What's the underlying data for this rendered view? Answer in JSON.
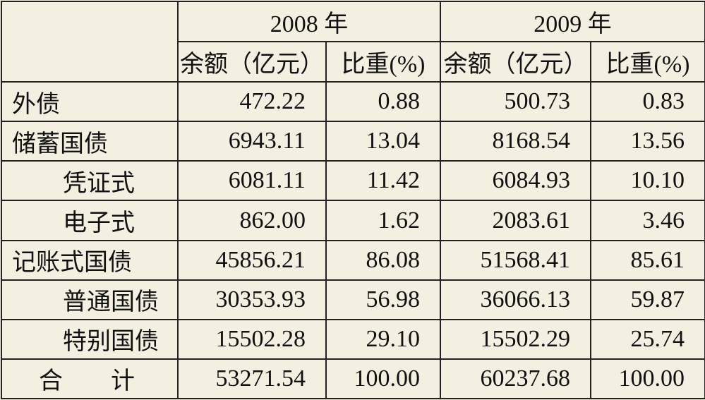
{
  "table": {
    "years": [
      "2008 年",
      "2009 年"
    ],
    "columns": [
      "余额（亿元）",
      "比重(%)",
      "余额（亿元）",
      "比重(%)"
    ],
    "rows": [
      {
        "label": "外债",
        "values": [
          "472.22",
          "0.88",
          "500.73",
          "0.83"
        ],
        "items": []
      },
      {
        "label": "储蓄国债",
        "values": [
          "6943.11",
          "13.04",
          "8168.54",
          "13.56"
        ],
        "items": [
          {
            "label": "凭证式",
            "values": [
              "6081.11",
              "11.42",
              "6084.93",
              "10.10"
            ]
          },
          {
            "label": "电子式",
            "values": [
              "862.00",
              "1.62",
              "2083.61",
              "3.46"
            ]
          }
        ]
      },
      {
        "label": "记账式国债",
        "values": [
          "45856.21",
          "86.08",
          "51568.41",
          "85.61"
        ],
        "items": [
          {
            "label": "普通国债",
            "values": [
              "30353.93",
              "56.98",
              "36066.13",
              "59.87"
            ]
          },
          {
            "label": "特别国债",
            "values": [
              "15502.28",
              "29.10",
              "15502.29",
              "25.74"
            ]
          }
        ]
      }
    ],
    "total": {
      "label": "合计",
      "values": [
        "53271.54",
        "100.00",
        "60237.68",
        "100.00"
      ]
    }
  }
}
